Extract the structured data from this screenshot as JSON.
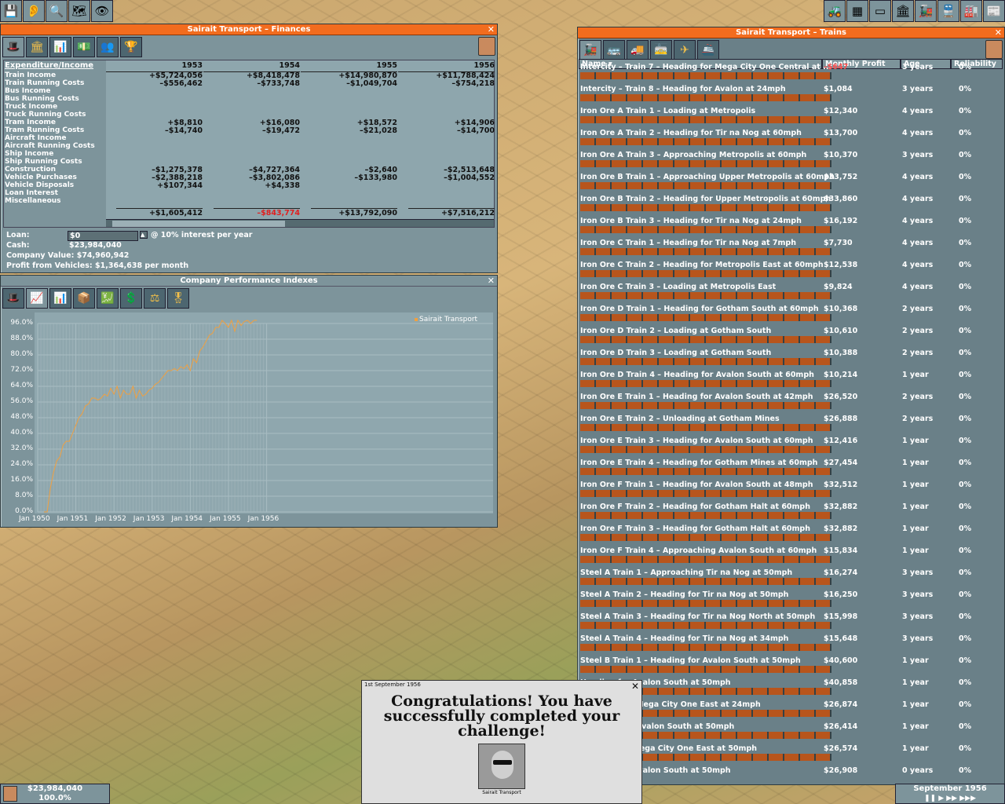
{
  "finances": {
    "title": "Sairait Transport – Finances",
    "header": "Expenditure/Income",
    "labels": [
      "Train Income",
      "Train Running Costs",
      "Bus Income",
      "Bus Running Costs",
      "Truck Income",
      "Truck Running Costs",
      "Tram Income",
      "Tram Running Costs",
      "Aircraft Income",
      "Aircraft Running Costs",
      "Ship Income",
      "Ship Running Costs",
      "Construction",
      "Vehicle Purchases",
      "Vehicle Disposals",
      "Loan Interest",
      "Miscellaneous"
    ],
    "years": [
      {
        "year": "1953",
        "vals": [
          "+$5,724,056",
          "–$556,462",
          "",
          "",
          "",
          "",
          "+$8,810",
          "–$14,740",
          "",
          "",
          "",
          "",
          "–$1,275,378",
          "–$2,388,218",
          "+$107,344",
          "",
          ""
        ],
        "total": "+$1,605,412",
        "neg": false
      },
      {
        "year": "1954",
        "vals": [
          "+$8,418,478",
          "–$733,748",
          "",
          "",
          "",
          "",
          "+$16,080",
          "–$19,472",
          "",
          "",
          "",
          "",
          "–$4,727,364",
          "–$3,802,086",
          "+$4,338",
          "",
          ""
        ],
        "total": "–$843,774",
        "neg": true
      },
      {
        "year": "1955",
        "vals": [
          "+$14,980,870",
          "–$1,049,704",
          "",
          "",
          "",
          "",
          "+$18,572",
          "–$21,028",
          "",
          "",
          "",
          "",
          "–$2,640",
          "–$133,980",
          "",
          "",
          ""
        ],
        "total": "+$13,792,090",
        "neg": false
      },
      {
        "year": "1956",
        "vals": [
          "+$11,788,424",
          "–$754,218",
          "",
          "",
          "",
          "",
          "+$14,906",
          "–$14,700",
          "",
          "",
          "",
          "",
          "–$2,513,648",
          "–$1,004,552",
          "",
          "",
          ""
        ],
        "total": "+$7,516,212",
        "neg": false
      }
    ],
    "loan_label": "Loan:",
    "loan_value": "$0",
    "loan_rate": "@ 10% interest per year",
    "cash_label": "Cash:",
    "cash_value": "$23,984,040",
    "company_value_label": "Company Value:",
    "company_value": "$74,960,942",
    "profit_label": "Profit from Vehicles:",
    "profit_value": "$1,364,638 per month"
  },
  "performance": {
    "title": "Company Performance Indexes",
    "legend": "Sairait Transport",
    "series_color": "#f0a040"
  },
  "chart_data": {
    "type": "line",
    "title": "Company Performance Indexes",
    "yticks": [
      "96.0%",
      "88.0%",
      "80.0%",
      "72.0%",
      "64.0%",
      "56.0%",
      "48.0%",
      "40.0%",
      "32.0%",
      "24.0%",
      "16.0%",
      "8.0%",
      "0.0%"
    ],
    "xticks": [
      "Jan 1950",
      "Jan 1951",
      "Jan 1952",
      "Jan 1953",
      "Jan 1954",
      "Jan 1955",
      "Jan 1956"
    ],
    "ylim": [
      0,
      100
    ],
    "series": [
      {
        "name": "Sairait Transport",
        "values": [
          0,
          0,
          12,
          20,
          26,
          28,
          34,
          36,
          36,
          40,
          44,
          48,
          50,
          54,
          55,
          58,
          58,
          57,
          58,
          60,
          59,
          63,
          60,
          64,
          58,
          62,
          60,
          60,
          64,
          58,
          62,
          59,
          60,
          62,
          63,
          65,
          66,
          68,
          70,
          72,
          72,
          73,
          72,
          74,
          73,
          75,
          72,
          78,
          76,
          82,
          84,
          87,
          90,
          91,
          94,
          94,
          99,
          96,
          94,
          99,
          92,
          98,
          95,
          97,
          99,
          96,
          99,
          100
        ]
      }
    ]
  },
  "trains": {
    "title": "Sairait Transport – Trains",
    "columns": {
      "name": "Name ▾",
      "profit": "Monthly Profit",
      "age": "Age",
      "reliability": "Reliability"
    },
    "rows": [
      {
        "name": "Intercity – Train 7 – Heading for Mega City One Central at ...",
        "profit": "–$647",
        "age": "3 years",
        "rel": "0%"
      },
      {
        "name": "Intercity – Train 8 – Heading for Avalon at 24mph",
        "profit": "$1,084",
        "age": "3 years",
        "rel": "0%"
      },
      {
        "name": "Iron Ore A Train 1 – Loading at Metropolis",
        "profit": "$12,340",
        "age": "4 years",
        "rel": "0%"
      },
      {
        "name": "Iron Ore A Train 2 – Heading for Tir na Nog at 60mph",
        "profit": "$13,700",
        "age": "4 years",
        "rel": "0%"
      },
      {
        "name": "Iron Ore A Train 3 – Approaching Metropolis at 60mph",
        "profit": "$10,370",
        "age": "3 years",
        "rel": "0%"
      },
      {
        "name": "Iron Ore B Train 1 – Approaching Upper Metropolis at 60mph",
        "profit": "$33,752",
        "age": "4 years",
        "rel": "0%"
      },
      {
        "name": "Iron Ore B Train 2 – Heading for Upper Metropolis at 60mph",
        "profit": "$33,860",
        "age": "4 years",
        "rel": "0%"
      },
      {
        "name": "Iron Ore B Train 3 – Heading for Tir na Nog at 24mph",
        "profit": "$16,192",
        "age": "4 years",
        "rel": "0%"
      },
      {
        "name": "Iron Ore C Train 1 – Heading for Tir na Nog at 7mph",
        "profit": "$7,730",
        "age": "4 years",
        "rel": "0%"
      },
      {
        "name": "Iron Ore C Train 2 – Heading for Metropolis East at 60mph",
        "profit": "$12,538",
        "age": "4 years",
        "rel": "0%"
      },
      {
        "name": "Iron Ore C Train 3 – Loading at Metropolis East",
        "profit": "$9,824",
        "age": "4 years",
        "rel": "0%"
      },
      {
        "name": "Iron Ore D Train 1 – Heading for Gotham South at 60mph",
        "profit": "$10,368",
        "age": "2 years",
        "rel": "0%"
      },
      {
        "name": "Iron Ore D Train 2 – Loading at Gotham South",
        "profit": "$10,610",
        "age": "2 years",
        "rel": "0%"
      },
      {
        "name": "Iron Ore D Train 3 – Loading at Gotham South",
        "profit": "$10,388",
        "age": "2 years",
        "rel": "0%"
      },
      {
        "name": "Iron Ore D Train 4 – Heading for Avalon South at 60mph",
        "profit": "$10,214",
        "age": "1 year",
        "rel": "0%"
      },
      {
        "name": "Iron Ore E Train 1 – Heading for Avalon South at 42mph",
        "profit": "$26,520",
        "age": "2 years",
        "rel": "0%"
      },
      {
        "name": "Iron Ore E Train 2 – Unloading at Gotham Mines",
        "profit": "$26,888",
        "age": "2 years",
        "rel": "0%"
      },
      {
        "name": "Iron Ore E Train 3 – Heading for Avalon South at 60mph",
        "profit": "$12,416",
        "age": "1 year",
        "rel": "0%"
      },
      {
        "name": "Iron Ore E Train 4 – Heading for Gotham Mines at 60mph",
        "profit": "$27,454",
        "age": "1 year",
        "rel": "0%"
      },
      {
        "name": "Iron Ore F Train 1 – Heading for Avalon South at 48mph",
        "profit": "$32,512",
        "age": "1 year",
        "rel": "0%"
      },
      {
        "name": "Iron Ore F Train 2 – Heading for Gotham Halt at 60mph",
        "profit": "$32,882",
        "age": "1 year",
        "rel": "0%"
      },
      {
        "name": "Iron Ore F Train 3 – Heading for Gotham Halt at 60mph",
        "profit": "$32,882",
        "age": "1 year",
        "rel": "0%"
      },
      {
        "name": "Iron Ore F Train 4 – Approaching Avalon South at 60mph",
        "profit": "$15,834",
        "age": "1 year",
        "rel": "0%"
      },
      {
        "name": "Steel A Train 1 – Approaching Tir na Nog at 50mph",
        "profit": "$16,274",
        "age": "3 years",
        "rel": "0%"
      },
      {
        "name": "Steel A Train 2 – Heading for Tir na Nog at 50mph",
        "profit": "$16,250",
        "age": "3 years",
        "rel": "0%"
      },
      {
        "name": "Steel A Train 3 – Heading for Tir na Nog North at 50mph",
        "profit": "$15,998",
        "age": "3 years",
        "rel": "0%"
      },
      {
        "name": "Steel A Train 4 – Heading for Tir na Nog at 34mph",
        "profit": "$15,648",
        "age": "3 years",
        "rel": "0%"
      },
      {
        "name": "Steel B Train 1 – Heading for Avalon South at 50mph",
        "profit": "$40,600",
        "age": "1 year",
        "rel": "0%"
      },
      {
        "name": "Heading for Avalon South at 50mph",
        "profit": "$40,858",
        "age": "1 year",
        "rel": "0%"
      },
      {
        "name": "Approaching Mega City One East at 24mph",
        "profit": "$26,874",
        "age": "1 year",
        "rel": "0%"
      },
      {
        "name": "Approaching Avalon South at 50mph",
        "profit": "$26,414",
        "age": "1 year",
        "rel": "0%"
      },
      {
        "name": "Heading for Mega City One East at 50mph",
        "profit": "$26,574",
        "age": "1 year",
        "rel": "0%"
      },
      {
        "name": "Heading for Avalon South at 50mph",
        "profit": "$26,908",
        "age": "0 years",
        "rel": "0%"
      }
    ]
  },
  "news": {
    "date": "1st September 1956",
    "message": "Congratulations! You have successfully completed your challenge!",
    "caption": "Sairait Transport"
  },
  "status": {
    "money": "$23,984,040",
    "rating": "100.0%",
    "date": "September 1956"
  }
}
